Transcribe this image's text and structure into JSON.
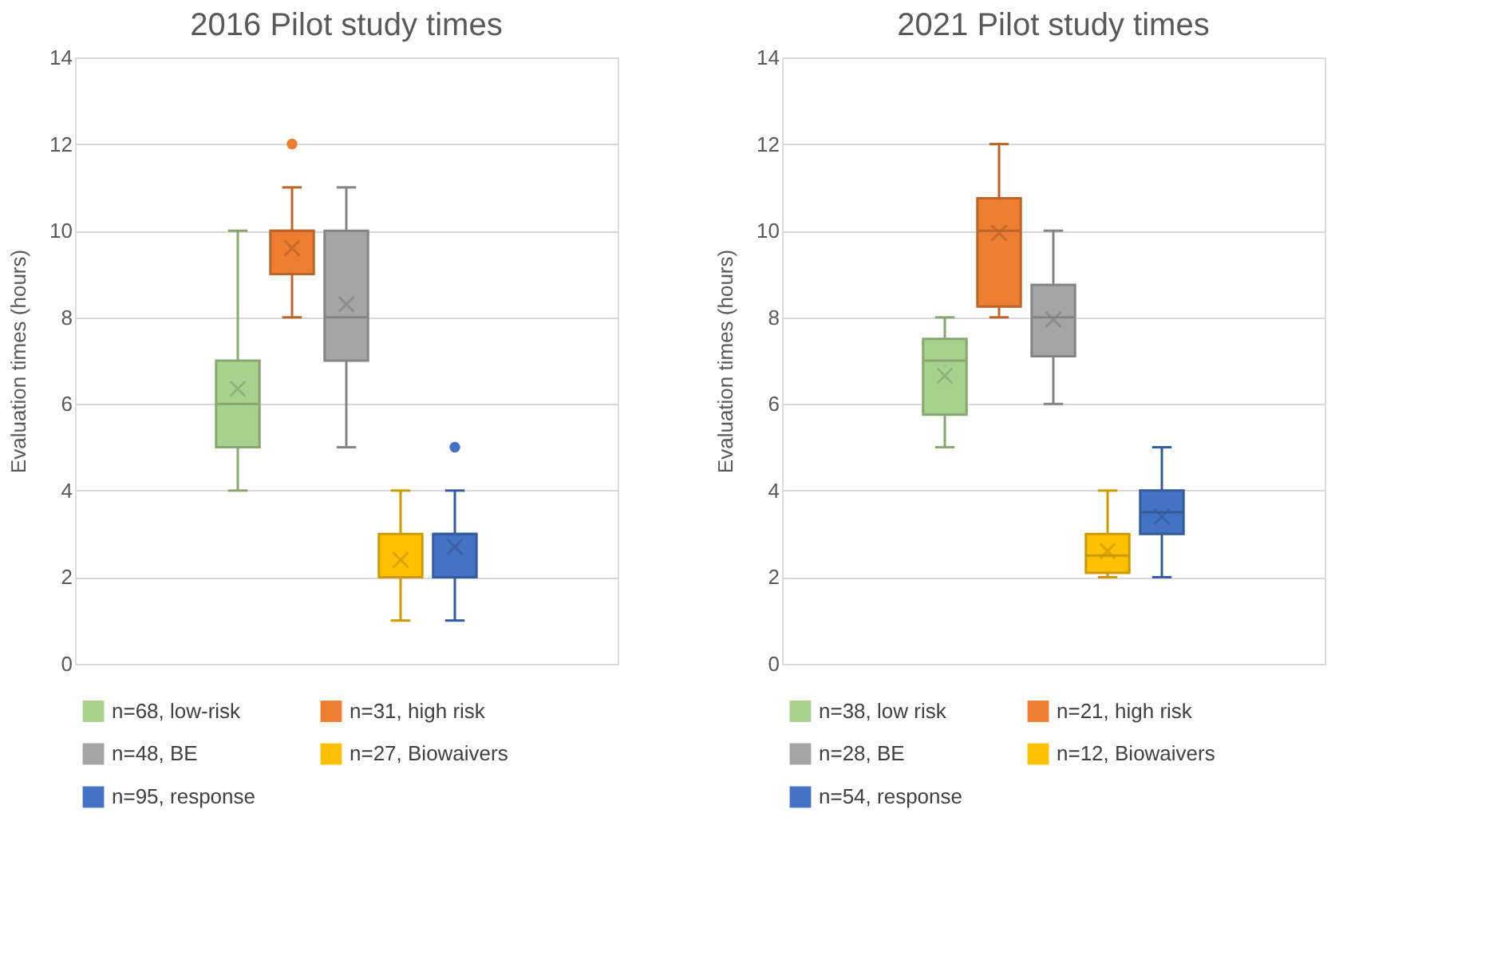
{
  "chart_data": [
    {
      "type": "box",
      "title": "2016 Pilot study times",
      "ylabel": "Evaluation times (hours)",
      "categories": [
        null
      ],
      "ylim": [
        0,
        14
      ],
      "yticks": [
        0,
        2,
        4,
        6,
        8,
        10,
        12,
        14
      ],
      "grid": "y",
      "legend": "bottom",
      "tick_labels": "y",
      "marker": "cross",
      "series": [
        {
          "name": "n=68, low-risk",
          "color": "#a9d18e",
          "boxes": [
            {
              "low": 4,
              "q1": 5,
              "median": 6,
              "q3": 7,
              "high": 10,
              "mean": 6.35
            }
          ]
        },
        {
          "name": "n=31, high risk",
          "color": "#ed7d31",
          "boxes": [
            {
              "low": 8,
              "q1": 9,
              "median": 10,
              "q3": 10,
              "high": 11,
              "mean": 9.6,
              "outliers": [
                12
              ]
            }
          ]
        },
        {
          "name": "n=48, BE",
          "color": "#a5a5a5",
          "boxes": [
            {
              "low": 5,
              "q1": 7,
              "median": 8,
              "q3": 10,
              "high": 11,
              "mean": 8.3
            }
          ]
        },
        {
          "name": "n=27, Biowaivers",
          "color": "#ffc000",
          "boxes": [
            {
              "low": 1,
              "q1": 2,
              "median": 2,
              "q3": 3,
              "high": 4,
              "mean": 2.4
            }
          ]
        },
        {
          "name": "n=95, response",
          "color": "#4472c4",
          "boxes": [
            {
              "low": 1,
              "q1": 2,
              "median": 3,
              "q3": 3,
              "high": 4,
              "mean": 2.7,
              "outliers": [
                5
              ]
            }
          ]
        }
      ]
    },
    {
      "type": "box",
      "title": "2021 Pilot study times",
      "ylabel": "Evaluation times (hours)",
      "categories": [
        null
      ],
      "ylim": [
        0,
        14
      ],
      "yticks": [
        0,
        2,
        4,
        6,
        8,
        10,
        12,
        14
      ],
      "grid": "y",
      "legend": "bottom",
      "tick_labels": "y",
      "marker": "cross",
      "series": [
        {
          "name": "n=38, low risk",
          "color": "#a9d18e",
          "boxes": [
            {
              "low": 5,
              "q1": 5.75,
              "median": 7,
              "q3": 7.5,
              "high": 8,
              "mean": 6.65
            }
          ]
        },
        {
          "name": "n=21, high risk",
          "color": "#ed7d31",
          "boxes": [
            {
              "low": 8,
              "q1": 8.25,
              "median": 10,
              "q3": 10.75,
              "high": 12,
              "mean": 9.95
            }
          ]
        },
        {
          "name": "n=28, BE",
          "color": "#a5a5a5",
          "boxes": [
            {
              "low": 6,
              "q1": 7.1,
              "median": 8,
              "q3": 8.75,
              "high": 10,
              "mean": 7.95
            }
          ]
        },
        {
          "name": "n=12, Biowaivers",
          "color": "#ffc000",
          "boxes": [
            {
              "low": 2,
              "q1": 2.1,
              "median": 2.5,
              "q3": 3,
              "high": 4,
              "mean": 2.6
            }
          ]
        },
        {
          "name": "n=54, response",
          "color": "#4472c4",
          "boxes": [
            {
              "low": 2,
              "q1": 3,
              "median": 3.5,
              "q3": 4,
              "high": 5,
              "mean": 3.4
            }
          ]
        }
      ]
    }
  ]
}
